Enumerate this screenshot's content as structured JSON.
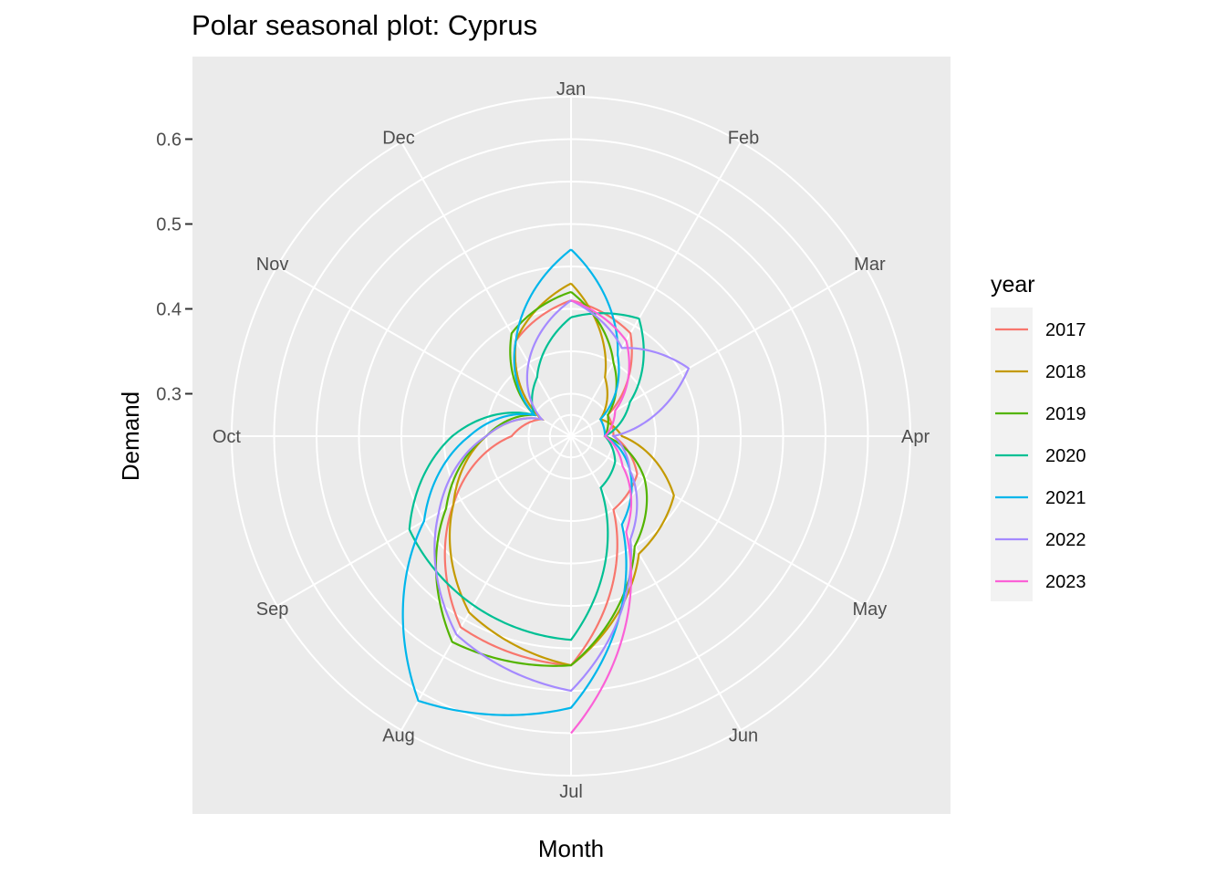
{
  "chart_data": {
    "type": "line",
    "coord": "polar",
    "title": "Polar seasonal plot: Cyprus",
    "xlabel": "Month",
    "ylabel": "Demand",
    "months": [
      "Jan",
      "Feb",
      "Mar",
      "Apr",
      "May",
      "Jun",
      "Jul",
      "Aug",
      "Sep",
      "Oct",
      "Nov",
      "Dec"
    ],
    "y_ticks": [
      "0.3",
      "0.4",
      "0.5",
      "0.6"
    ],
    "y_tick_values": [
      0.3,
      0.4,
      0.5,
      0.6
    ],
    "ylim": [
      0.25,
      0.65
    ],
    "grid": true,
    "legend": {
      "title": "year",
      "placement": "right"
    },
    "series": [
      {
        "name": "2017",
        "color": "#F8766D",
        "values": [
          0.41,
          0.39,
          0.3,
          0.3,
          0.34,
          0.35,
          0.52,
          0.51,
          0.41,
          0.32,
          0.29,
          0.38
        ]
      },
      {
        "name": "2018",
        "color": "#C49A00",
        "values": [
          0.43,
          0.33,
          0.29,
          0.31,
          0.39,
          0.41,
          0.52,
          0.49,
          0.41,
          0.35,
          0.29,
          0.38
        ]
      },
      {
        "name": "2019",
        "color": "#53B400",
        "values": [
          0.42,
          0.35,
          0.3,
          0.29,
          0.35,
          0.4,
          0.52,
          0.53,
          0.42,
          0.35,
          0.3,
          0.39
        ]
      },
      {
        "name": "2020",
        "color": "#00C094",
        "values": [
          0.39,
          0.41,
          0.33,
          0.29,
          0.31,
          0.32,
          0.49,
          0.48,
          0.47,
          0.39,
          0.3,
          0.33
        ]
      },
      {
        "name": "2021",
        "color": "#00B6EB",
        "values": [
          0.47,
          0.36,
          0.29,
          0.29,
          0.33,
          0.37,
          0.57,
          0.61,
          0.45,
          0.37,
          0.3,
          0.38
        ]
      },
      {
        "name": "2022",
        "color": "#A58AFF",
        "values": [
          0.41,
          0.37,
          0.41,
          0.3,
          0.33,
          0.39,
          0.55,
          0.52,
          0.43,
          0.35,
          0.29,
          0.35
        ]
      },
      {
        "name": "2023",
        "color": "#FB61D7",
        "values": [
          0.41,
          0.38,
          0.31,
          0.29,
          0.32,
          0.38,
          0.6,
          null,
          null,
          null,
          null,
          null
        ]
      }
    ]
  }
}
